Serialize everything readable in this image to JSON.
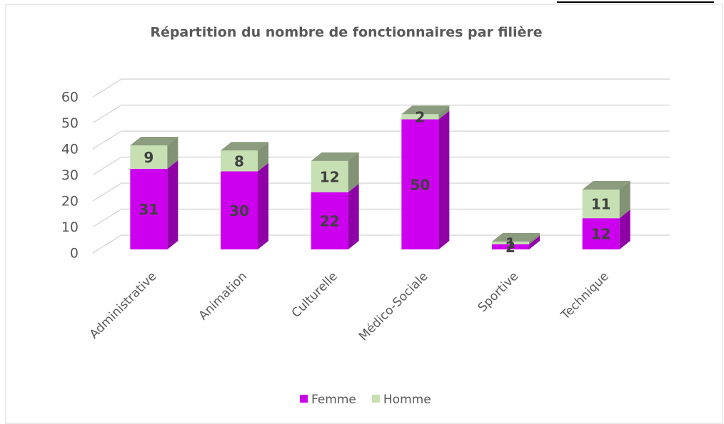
{
  "chart_data": {
    "type": "bar3d_stacked",
    "title": "Répartition du nombre de fonctionnaires par filière",
    "categories": [
      "Administrative",
      "Animation",
      "Culturelle",
      "Médico-Sociale",
      "Sportive",
      "Technique"
    ],
    "series": [
      {
        "name": "Femme",
        "color": "#cc00ee",
        "values": [
          31,
          30,
          22,
          50,
          2,
          12
        ]
      },
      {
        "name": "Homme",
        "color": "#c6e0b4",
        "values": [
          9,
          8,
          12,
          2,
          1,
          11
        ]
      }
    ],
    "ylim": [
      0,
      60
    ],
    "yticks": [
      0,
      10,
      20,
      30,
      40,
      50,
      60
    ],
    "grid": true,
    "legend": "bottom"
  }
}
